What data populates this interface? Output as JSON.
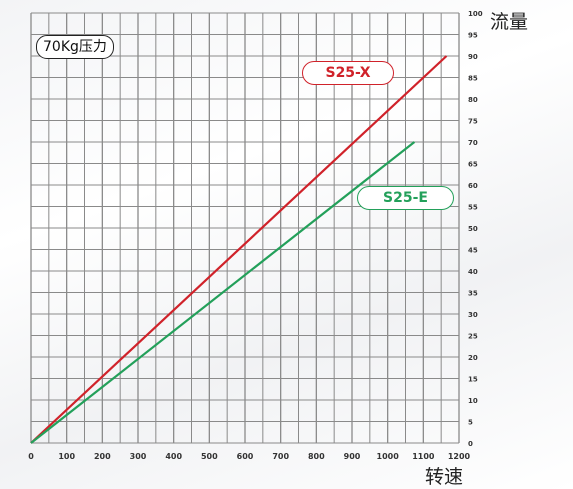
{
  "colors": {
    "grid": "#8a8a8a",
    "tick_text": "#333333"
  },
  "chart_data": {
    "type": "line",
    "xlabel": "转速",
    "ylabel": "流量",
    "annotation": "70Kg压力",
    "xlim": [
      0,
      1200
    ],
    "ylim": [
      0,
      100
    ],
    "x_ticks": [
      0,
      100,
      200,
      300,
      400,
      500,
      600,
      700,
      800,
      900,
      1000,
      1100,
      1200
    ],
    "y_ticks": [
      0,
      5,
      10,
      15,
      20,
      25,
      30,
      35,
      40,
      45,
      50,
      55,
      60,
      65,
      70,
      75,
      80,
      85,
      90,
      95,
      100
    ],
    "grid": true,
    "series": [
      {
        "name": "S25-X",
        "color": "#d0222a",
        "x": [
          0,
          1165
        ],
        "y": [
          0,
          90
        ]
      },
      {
        "name": "S25-E",
        "color": "#23a05a",
        "x": [
          0,
          1075
        ],
        "y": [
          0,
          70
        ]
      }
    ]
  }
}
